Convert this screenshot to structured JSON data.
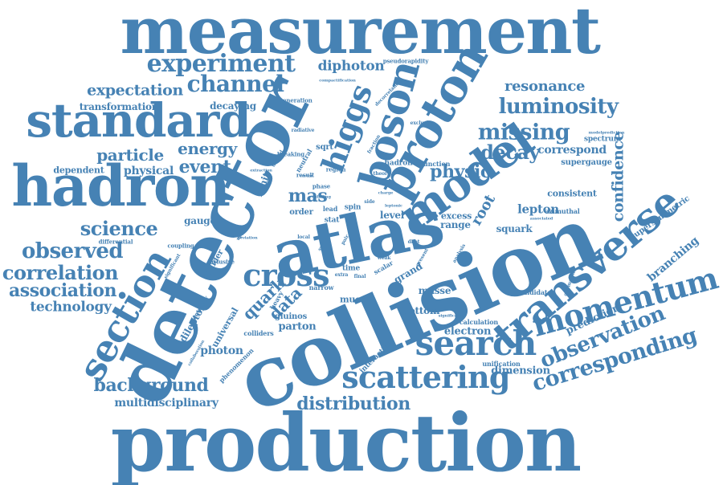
{
  "cloud": {
    "color": "#4682b4",
    "words": [
      {
        "text": "measurement",
        "weight": 100
      },
      {
        "text": "production",
        "weight": 100
      },
      {
        "text": "collision",
        "weight": 98
      },
      {
        "text": "detector",
        "weight": 86
      },
      {
        "text": "atlas",
        "weight": 82
      },
      {
        "text": "hadron",
        "weight": 68
      },
      {
        "text": "standard",
        "weight": 58
      },
      {
        "text": "transverse",
        "weight": 52
      },
      {
        "text": "model",
        "weight": 52
      },
      {
        "text": "proton",
        "weight": 52
      },
      {
        "text": "boson",
        "weight": 50
      },
      {
        "text": "section",
        "weight": 46
      },
      {
        "text": "search",
        "weight": 40
      },
      {
        "text": "scattering",
        "weight": 38
      },
      {
        "text": "momentum",
        "weight": 36
      },
      {
        "text": "higgs",
        "weight": 36
      },
      {
        "text": "cross",
        "weight": 34
      },
      {
        "text": "experiment",
        "weight": 30
      },
      {
        "text": "channel",
        "weight": 28
      },
      {
        "text": "corresponding",
        "weight": 28
      },
      {
        "text": "observation",
        "weight": 26
      },
      {
        "text": "missing",
        "weight": 26
      },
      {
        "text": "luminosity",
        "weight": 26
      },
      {
        "text": "observed",
        "weight": 24
      },
      {
        "text": "correlation",
        "weight": 24
      },
      {
        "text": "science",
        "weight": 24
      },
      {
        "text": "decay",
        "weight": 24
      },
      {
        "text": "background",
        "weight": 22
      },
      {
        "text": "distribution",
        "weight": 22
      },
      {
        "text": "association",
        "weight": 22
      },
      {
        "text": "physic",
        "weight": 22
      },
      {
        "text": "event",
        "weight": 22
      },
      {
        "text": "particle",
        "weight": 20
      },
      {
        "text": "energy",
        "weight": 20
      },
      {
        "text": "expectation",
        "weight": 20
      },
      {
        "text": "confidence",
        "weight": 20
      },
      {
        "text": "quark",
        "weight": 20
      },
      {
        "text": "data",
        "weight": 20
      },
      {
        "text": "mas",
        "weight": 20
      },
      {
        "text": "resonance",
        "weight": 18
      },
      {
        "text": "technology",
        "weight": 18
      },
      {
        "text": "root",
        "weight": 18
      },
      {
        "text": "diphoton",
        "weight": 16
      },
      {
        "text": "lepton",
        "weight": 16
      },
      {
        "text": "branching",
        "weight": 16
      },
      {
        "text": "correspond",
        "weight": 14
      },
      {
        "text": "physical",
        "weight": 14
      },
      {
        "text": "photon",
        "weight": 14
      },
      {
        "text": "multidisciplinary",
        "weight": 14
      },
      {
        "text": "parton",
        "weight": 14
      },
      {
        "text": "bottom",
        "weight": 13
      },
      {
        "text": "electron",
        "weight": 13
      },
      {
        "text": "prediction",
        "weight": 14
      },
      {
        "text": "dimension",
        "weight": 13
      },
      {
        "text": "transformation",
        "weight": 13
      },
      {
        "text": "decaying",
        "weight": 13
      },
      {
        "text": "dependent",
        "weight": 12
      },
      {
        "text": "gauge",
        "weight": 13
      },
      {
        "text": "squark",
        "weight": 12
      },
      {
        "text": "range",
        "weight": 12
      },
      {
        "text": "excess",
        "weight": 12
      },
      {
        "text": "level",
        "weight": 12
      },
      {
        "text": "limit",
        "weight": 12
      },
      {
        "text": "dilepton",
        "weight": 13
      },
      {
        "text": "universal",
        "weight": 12
      },
      {
        "text": "masse",
        "weight": 12
      },
      {
        "text": "grand",
        "weight": 12
      },
      {
        "text": "muon",
        "weight": 12
      },
      {
        "text": "gluinos",
        "weight": 11
      },
      {
        "text": "collider",
        "weight": 11
      },
      {
        "text": "consistent",
        "weight": 11
      },
      {
        "text": "spectrum",
        "weight": 10
      },
      {
        "text": "supergauge",
        "weight": 10
      },
      {
        "text": "supersymmetric",
        "weight": 10
      },
      {
        "text": "azimuthal",
        "weight": 9
      },
      {
        "text": "hadron",
        "weight": 9
      },
      {
        "text": "function",
        "weight": 9
      },
      {
        "text": "calculation",
        "weight": 9
      },
      {
        "text": "candidate",
        "weight": 9
      },
      {
        "text": "interaction",
        "weight": 10
      },
      {
        "text": "unification",
        "weight": 10
      },
      {
        "text": "phenomenon",
        "weight": 9
      },
      {
        "text": "colliders",
        "weight": 9
      },
      {
        "text": "inclusive",
        "weight": 8
      },
      {
        "text": "coupling",
        "weight": 8
      },
      {
        "text": "differential",
        "weight": 8
      },
      {
        "text": "significant",
        "weight": 8
      },
      {
        "text": "centrality",
        "weight": 8
      },
      {
        "text": "heavy",
        "weight": 9
      },
      {
        "text": "narrow",
        "weight": 9
      },
      {
        "text": "stat",
        "weight": 9
      },
      {
        "text": "spin",
        "weight": 9
      },
      {
        "text": "lead",
        "weight": 9
      },
      {
        "text": "order",
        "weight": 10
      },
      {
        "text": "sqrt",
        "weight": 10
      },
      {
        "text": "phase",
        "weight": 8
      },
      {
        "text": "result",
        "weight": 8
      },
      {
        "text": "breaking",
        "weight": 8
      },
      {
        "text": "neutral",
        "weight": 9
      },
      {
        "text": "generation",
        "weight": 8
      },
      {
        "text": "radiative",
        "weight": 7
      },
      {
        "text": "pseudorapidity",
        "weight": 8
      },
      {
        "text": "compactification",
        "weight": 7
      },
      {
        "text": "decorrelations",
        "weight": 7
      },
      {
        "text": "exclusion",
        "weight": 7
      },
      {
        "text": "region",
        "weight": 8
      },
      {
        "text": "theory",
        "weight": 7
      },
      {
        "text": "fraction",
        "weight": 7
      },
      {
        "text": "time",
        "weight": 9
      },
      {
        "text": "scalar",
        "weight": 9
      },
      {
        "text": "extra",
        "weight": 8
      },
      {
        "text": "final",
        "weight": 8
      },
      {
        "text": "weak",
        "weight": 8
      },
      {
        "text": "side",
        "weight": 8
      },
      {
        "text": "upper",
        "weight": 8
      },
      {
        "text": "unified",
        "weight": 8
      },
      {
        "text": "pair",
        "weight": 8
      },
      {
        "text": "syst",
        "weight": 8
      },
      {
        "text": "local",
        "weight": 7
      },
      {
        "text": "present",
        "weight": 7
      },
      {
        "text": "vector",
        "weight": 7
      },
      {
        "text": "extraction",
        "weight": 7
      },
      {
        "text": "leptonic",
        "weight": 7
      },
      {
        "text": "colliding",
        "weight": 7
      },
      {
        "text": "analysis",
        "weight": 7
      },
      {
        "text": "anomalous",
        "weight": 7
      },
      {
        "text": "associated",
        "weight": 7
      },
      {
        "text": "modelprediction",
        "weight": 6
      },
      {
        "text": "significance",
        "weight": 6
      },
      {
        "text": "collaboration",
        "weight": 6
      },
      {
        "text": "deviation",
        "weight": 6
      },
      {
        "text": "dijet",
        "weight": 6
      },
      {
        "text": "charge",
        "weight": 6
      }
    ]
  }
}
